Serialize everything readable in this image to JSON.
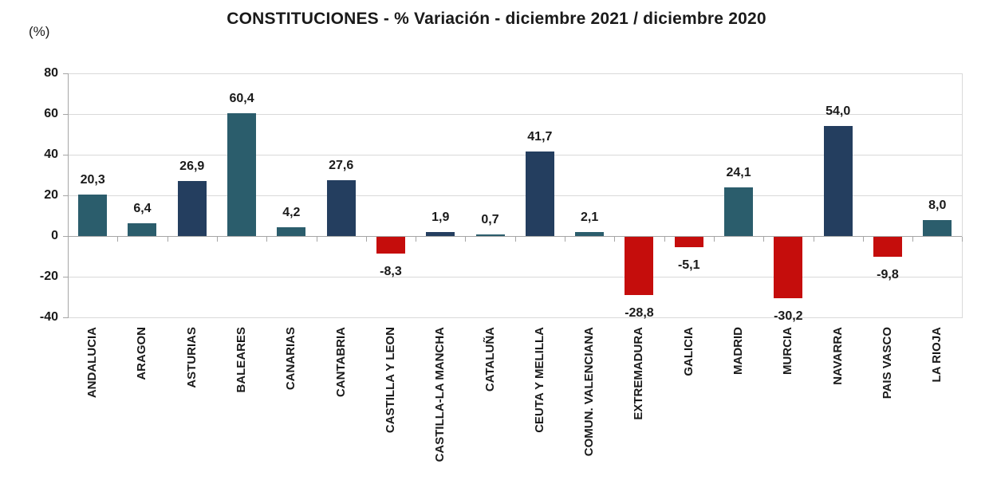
{
  "title": "CONSTITUCIONES - % Variación - diciembre 2021 / diciembre 2020",
  "unit_label": "(%)",
  "colors": {
    "teal": "#2B5D6C",
    "navy": "#243E5F",
    "red": "#C50D0C",
    "grid": "#D9D9D9",
    "axis": "#A6A6A6",
    "text": "#1A1A1A"
  },
  "chart_data": {
    "type": "bar",
    "title": "CONSTITUCIONES - % Variación - diciembre 2021 / diciembre 2020",
    "ylabel": "(%)",
    "xlabel": "",
    "categories": [
      "ANDALUCIA",
      "ARAGON",
      "ASTURIAS",
      "BALEARES",
      "CANARIAS",
      "CANTABRIA",
      "CASTILLA Y LEON",
      "CASTILLA-LA MANCHA",
      "CATALUÑA",
      "CEUTA Y MELILLA",
      "COMUN. VALENCIANA",
      "EXTREMADURA",
      "GALICIA",
      "MADRID",
      "MURCIA",
      "NAVARRA",
      "PAIS VASCO",
      "LA RIOJA"
    ],
    "values": [
      20.3,
      6.4,
      26.9,
      60.4,
      4.2,
      27.6,
      -8.3,
      1.9,
      0.7,
      41.7,
      2.1,
      -28.8,
      -5.1,
      24.1,
      -30.2,
      54.0,
      -9.8,
      8.0
    ],
    "value_labels": [
      "20,3",
      "6,4",
      "26,9",
      "60,4",
      "4,2",
      "27,6",
      "-8,3",
      "1,9",
      "0,7",
      "41,7",
      "2,1",
      "-28,8",
      "-5,1",
      "24,1",
      "-30,2",
      "54,0",
      "-9,8",
      "8,0"
    ],
    "bar_colors": [
      "teal",
      "teal",
      "navy",
      "teal",
      "teal",
      "navy",
      "red",
      "navy",
      "teal",
      "navy",
      "teal",
      "red",
      "red",
      "teal",
      "red",
      "navy",
      "red",
      "teal"
    ],
    "yticks": [
      80,
      60,
      40,
      20,
      0,
      -20,
      -40
    ],
    "ylim": [
      -40,
      80
    ],
    "grid": "horizontal",
    "legend": "none"
  }
}
